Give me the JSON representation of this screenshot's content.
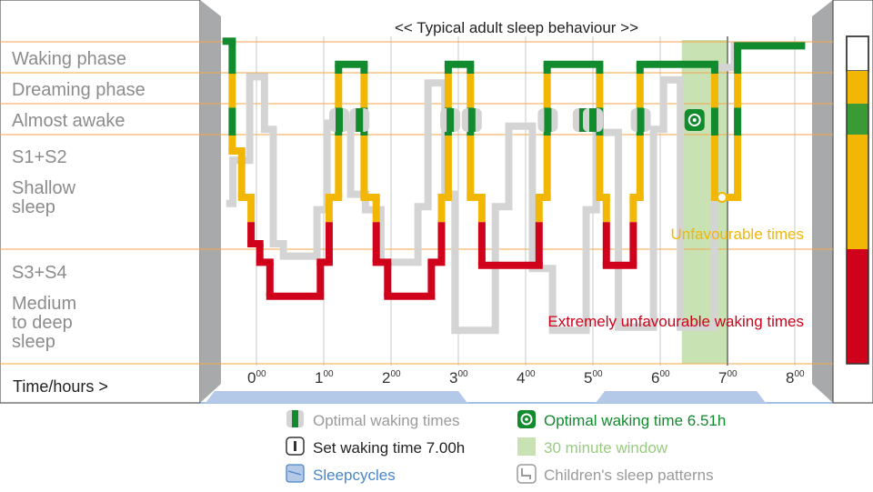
{
  "chart_data": {
    "type": "line",
    "title": "<< Typical adult sleep behaviour >>",
    "xlabel": "Time/hours >",
    "x_ticks": [
      {
        "base": "0",
        "sup": "00",
        "value": 0,
        "highlight": false
      },
      {
        "base": "1",
        "sup": "00",
        "value": 1,
        "highlight": false
      },
      {
        "base": "2",
        "sup": "00",
        "value": 2,
        "highlight": false
      },
      {
        "base": "3",
        "sup": "00",
        "value": 3,
        "highlight": false
      },
      {
        "base": "4",
        "sup": "00",
        "value": 4,
        "highlight": false
      },
      {
        "base": "5",
        "sup": "00",
        "value": 5,
        "highlight": false
      },
      {
        "base": "6",
        "sup": "00",
        "value": 6,
        "highlight": false
      },
      {
        "base": "7",
        "sup": "00",
        "value": 7,
        "highlight": true
      },
      {
        "base": "8",
        "sup": "00",
        "value": 8,
        "highlight": false
      }
    ],
    "xlim": [
      -0.5,
      8.5
    ],
    "phase_labels": [
      {
        "text": "Waking phase",
        "level": 1.0
      },
      {
        "text": "Dreaming phase",
        "level": 2.0
      },
      {
        "text": "Almost awake",
        "level": 3.0
      },
      {
        "text": "S1+S2",
        "level": 3.7
      },
      {
        "text": "Shallow",
        "level": 4.7
      },
      {
        "text": "sleep",
        "level": 5.3
      },
      {
        "text": "S3+S4",
        "level": 7.3
      },
      {
        "text": "Medium",
        "level": 8.4
      },
      {
        "text": "to deep",
        "level": 9.05
      },
      {
        "text": "sleep",
        "level": 9.7
      }
    ],
    "annotations": [
      {
        "text": "Unfavourable times",
        "color": "#f2b705"
      },
      {
        "text": "Extremely unfavourable waking times",
        "color": "#d0021b"
      }
    ],
    "optimal_window": {
      "start": 6.51,
      "end": 7.0
    },
    "optimal_wake": 6.51,
    "set_wake": 7.0,
    "sleep_profile": [
      [
        -0.45,
        0.45
      ],
      [
        -0.36,
        0.45
      ],
      [
        -0.36,
        4.0
      ],
      [
        -0.22,
        4.0
      ],
      [
        -0.22,
        5.5
      ],
      [
        -0.08,
        5.5
      ],
      [
        -0.08,
        7.0
      ],
      [
        0.05,
        7.0
      ],
      [
        0.05,
        7.6
      ],
      [
        0.2,
        7.6
      ],
      [
        0.2,
        8.7
      ],
      [
        0.95,
        8.7
      ],
      [
        0.95,
        7.6
      ],
      [
        1.08,
        7.6
      ],
      [
        1.08,
        5.5
      ],
      [
        1.22,
        5.5
      ],
      [
        1.22,
        1.2
      ],
      [
        1.6,
        1.2
      ],
      [
        1.6,
        5.5
      ],
      [
        1.78,
        5.5
      ],
      [
        1.78,
        7.6
      ],
      [
        1.95,
        7.6
      ],
      [
        1.95,
        8.7
      ],
      [
        2.6,
        8.7
      ],
      [
        2.6,
        7.6
      ],
      [
        2.75,
        7.6
      ],
      [
        2.75,
        5.5
      ],
      [
        2.85,
        5.5
      ],
      [
        2.85,
        1.2
      ],
      [
        3.18,
        1.2
      ],
      [
        3.18,
        5.5
      ],
      [
        3.35,
        5.5
      ],
      [
        3.35,
        7.7
      ],
      [
        4.2,
        7.7
      ],
      [
        4.2,
        5.5
      ],
      [
        4.32,
        5.5
      ],
      [
        4.32,
        1.2
      ],
      [
        5.1,
        1.2
      ],
      [
        5.1,
        5.5
      ],
      [
        5.2,
        5.5
      ],
      [
        5.2,
        7.7
      ],
      [
        5.6,
        7.7
      ],
      [
        5.6,
        5.5
      ],
      [
        5.7,
        5.5
      ],
      [
        5.7,
        1.2
      ],
      [
        6.81,
        1.2
      ],
      [
        6.81,
        5.5
      ],
      [
        7.15,
        5.5
      ],
      [
        7.15,
        0.6
      ],
      [
        8.1,
        0.6
      ]
    ],
    "childrens_profile": [
      [
        -0.45,
        5.7
      ],
      [
        -0.35,
        5.7
      ],
      [
        -0.35,
        4.3
      ],
      [
        -0.1,
        4.3
      ],
      [
        -0.1,
        1.6
      ],
      [
        0.12,
        1.6
      ],
      [
        0.12,
        3.3
      ],
      [
        0.25,
        3.3
      ],
      [
        0.25,
        7.0
      ],
      [
        0.4,
        7.0
      ],
      [
        0.4,
        7.4
      ],
      [
        0.9,
        7.4
      ],
      [
        0.9,
        5.9
      ],
      [
        1.05,
        5.9
      ],
      [
        1.05,
        3.1
      ],
      [
        1.4,
        3.1
      ],
      [
        1.4,
        5.4
      ],
      [
        1.62,
        5.4
      ],
      [
        1.62,
        5.9
      ],
      [
        1.85,
        5.9
      ],
      [
        1.85,
        7.6
      ],
      [
        2.4,
        7.6
      ],
      [
        2.4,
        5.8
      ],
      [
        2.55,
        5.8
      ],
      [
        2.55,
        1.8
      ],
      [
        2.8,
        1.8
      ],
      [
        2.8,
        5.4
      ],
      [
        2.95,
        5.4
      ],
      [
        2.95,
        9.8
      ],
      [
        3.55,
        9.8
      ],
      [
        3.55,
        5.8
      ],
      [
        3.75,
        5.8
      ],
      [
        3.75,
        3.2
      ],
      [
        4.1,
        3.2
      ],
      [
        4.1,
        7.8
      ],
      [
        4.4,
        7.8
      ],
      [
        4.4,
        9.8
      ],
      [
        4.9,
        9.8
      ],
      [
        4.9,
        5.9
      ],
      [
        5.05,
        5.9
      ],
      [
        5.05,
        3.4
      ],
      [
        5.38,
        3.4
      ],
      [
        5.38,
        9.7
      ],
      [
        5.9,
        9.7
      ],
      [
        5.9,
        3.3
      ],
      [
        6.05,
        3.3
      ],
      [
        6.05,
        1.7
      ],
      [
        6.3,
        1.7
      ],
      [
        6.3,
        9.7
      ],
      [
        6.8,
        9.7
      ],
      [
        6.8,
        1.3
      ],
      [
        7.1,
        1.3
      ],
      [
        7.1,
        0.6
      ],
      [
        8.0,
        0.6
      ]
    ],
    "optimal_markers": [
      1.23,
      1.53,
      2.88,
      3.2,
      4.33,
      4.85,
      5.0,
      5.71
    ]
  },
  "legend": {
    "optimal_times": "Optimal waking times",
    "set_time": "Set waking time 7.00h",
    "sleepcycles": "Sleepcycles",
    "optimal_time": "Optimal waking time 6.51h",
    "window": "30 minute window",
    "children": "Children's sleep patterns"
  },
  "colors": {
    "waking": "#128a2e",
    "dreaming": "#f2b705",
    "deep": "#d0021b",
    "window": "#c8e2b4",
    "grey_profile": "#d4d4d4",
    "panel_grey": "#a7a9ab",
    "orange_line": "#f4a64a",
    "blue_band": "#b4c8e8",
    "legend_blue": "#4a86c8"
  }
}
